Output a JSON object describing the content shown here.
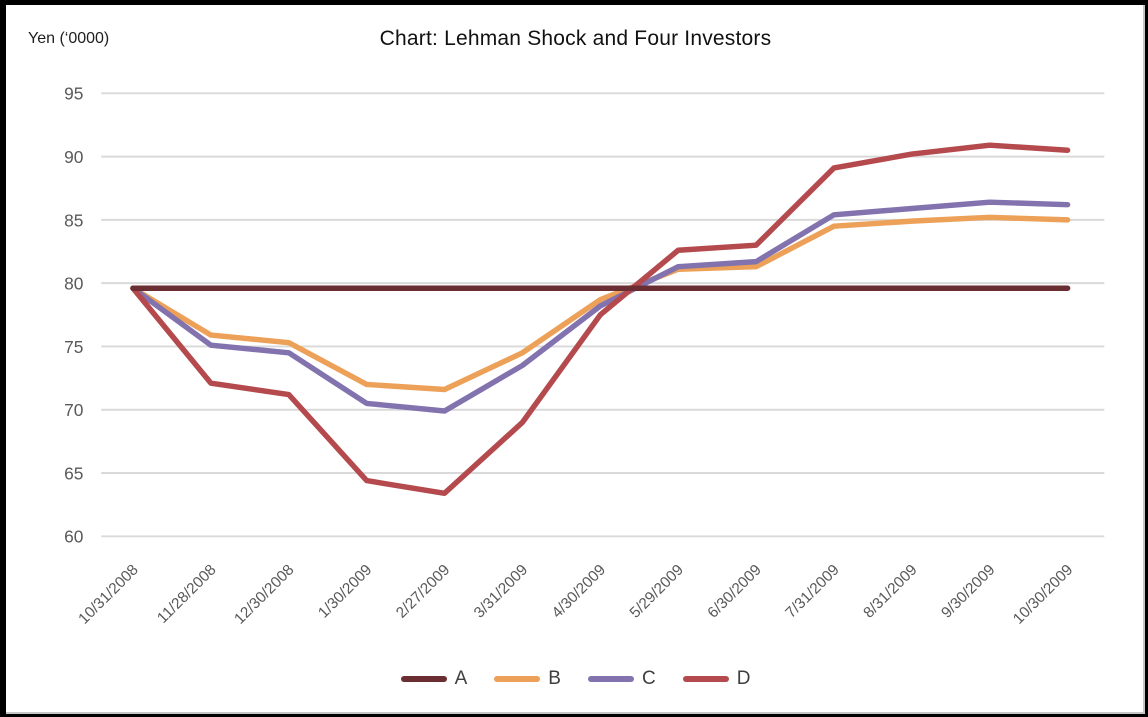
{
  "chart_data": {
    "type": "line",
    "title": "Chart: Lehman Shock and Four Investors",
    "ylabel": "Yen (‘0000)",
    "categories": [
      "10/31/2008",
      "11/28/2008",
      "12/30/2008",
      "1/30/2009",
      "2/27/2009",
      "3/31/2009",
      "4/30/2009",
      "5/29/2009",
      "6/30/2009",
      "7/31/2009",
      "8/31/2009",
      "9/30/2009",
      "10/30/2009"
    ],
    "series": [
      {
        "name": "A",
        "color": "#6A2D32",
        "values": [
          79.6,
          79.6,
          79.6,
          79.6,
          79.6,
          79.6,
          79.6,
          79.6,
          79.6,
          79.6,
          79.6,
          79.6,
          79.6
        ]
      },
      {
        "name": "B",
        "color": "#EDA057",
        "values": [
          79.6,
          75.9,
          75.3,
          72.0,
          71.6,
          74.5,
          78.7,
          81.1,
          81.3,
          84.5,
          84.9,
          85.2,
          85.0
        ]
      },
      {
        "name": "C",
        "color": "#8273AF",
        "values": [
          79.6,
          75.1,
          74.5,
          70.5,
          69.9,
          73.5,
          78.2,
          81.3,
          81.7,
          85.4,
          85.9,
          86.4,
          86.2
        ]
      },
      {
        "name": "D",
        "color": "#B44A4D",
        "values": [
          79.6,
          72.1,
          71.2,
          64.4,
          63.4,
          69.0,
          77.5,
          82.6,
          83.0,
          89.1,
          90.2,
          90.9,
          90.5
        ]
      }
    ],
    "draw_order": [
      "B",
      "C",
      "D",
      "A"
    ],
    "ylim": [
      60,
      95
    ],
    "yticks": [
      95,
      90,
      85,
      80,
      75,
      70,
      65,
      60
    ],
    "grid": "horizontal",
    "grid_color": "#D9D9D9",
    "axis_label_color": "#595959",
    "legend_position": "bottom"
  }
}
